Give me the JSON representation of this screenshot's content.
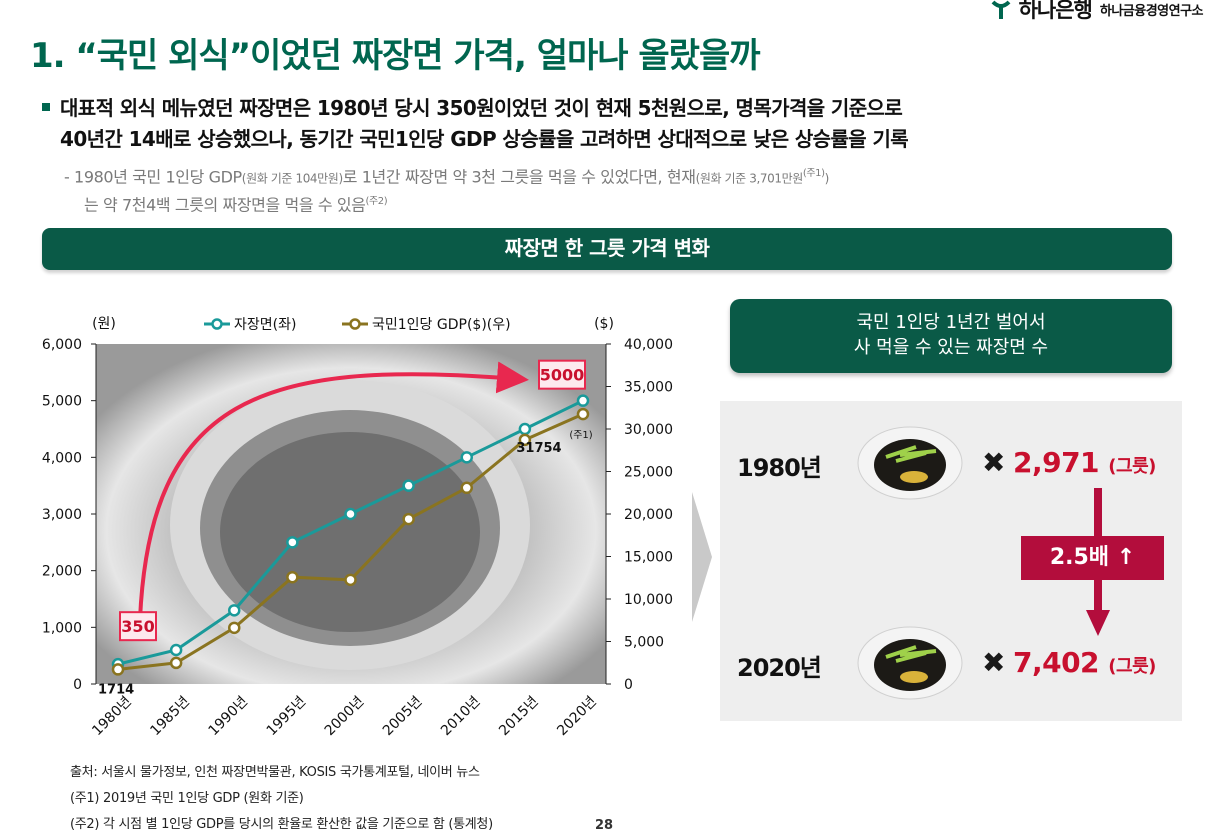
{
  "header": {
    "bank_name": "하나은행",
    "institute": "하나금융경영연구소",
    "title": "1. “국민 외식”이었던 짜장면 가격, 얼마나 올랐을까"
  },
  "bullet": {
    "line1": "대표적 외식 메뉴였던 짜장면은 1980년 당시 350원이었던 것이 현재 5천원으로, 명목가격을 기준으로",
    "line2": "40년간 14배로 상승했으나, 동기간 국민1인당 GDP 상승률을 고려하면 상대적으로 낮은 상승률을 기록"
  },
  "sub": {
    "a1": "- 1980년 국민 1인당 GDP",
    "a2": "(원화 기준 104만원)",
    "a3": "로 1년간 짜장면 약 3천 그릇을 먹을 수 있었다면, 현재",
    "a4": "(원화 기준 3,701만원",
    "a5": "(주1)",
    "a6": ")",
    "b1": "는 약 7천4백 그릇의 짜장면을 먹을 수 있음",
    "b2": "(주2)"
  },
  "banner": "짜장면 한 그릇 가격 변화",
  "chart_data": {
    "type": "line",
    "categories": [
      "1980년",
      "1985년",
      "1990년",
      "1995년",
      "2000년",
      "2005년",
      "2010년",
      "2015년",
      "2020년"
    ],
    "series": [
      {
        "name": "자장면(좌)",
        "axis": "left",
        "color": "#1a9a9a",
        "values": [
          350,
          600,
          1300,
          2500,
          3000,
          3500,
          4000,
          4500,
          5000
        ]
      },
      {
        "name": "국민1인당 GDP($)(우)",
        "axis": "right",
        "color": "#8a7420",
        "values": [
          1714,
          2483,
          6610,
          12565,
          12257,
          19403,
          23083,
          28724,
          31754
        ]
      }
    ],
    "left_unit": "(원)",
    "right_unit": "($)",
    "left_ylim": [
      0,
      6000
    ],
    "right_ylim": [
      0,
      40000
    ],
    "left_ticks": [
      "0",
      "1,000",
      "2,000",
      "3,000",
      "4,000",
      "5,000",
      "6,000"
    ],
    "right_ticks": [
      "0",
      "5,000",
      "10,000",
      "15,000",
      "20,000",
      "25,000",
      "30,000",
      "35,000",
      "40,000"
    ],
    "annotations": {
      "start_box": "350",
      "end_box": "5000",
      "gdp_start": "1714",
      "gdp_end": "31754",
      "gdp_end_note": "(주1)"
    },
    "legend_position": "top",
    "grid": false,
    "arrow_color": "#e8284f"
  },
  "notes": {
    "source": "출처: 서울시 물가정보, 인천 짜장면박물관, KOSIS 국가통계포털, 네이버 뉴스",
    "note1": "(주1) 2019년 국민 1인당 GDP (원화 기준)",
    "note2": "(주2) 각 시점 별 1인당 GDP를 당시의 환율로 환산한 값을 기준으로 함 (통계청)"
  },
  "page_number": "28",
  "right_panel": {
    "title_line1": "국민 1인당 1년간 벌어서",
    "title_line2": "사 먹을 수 있는 짜장면 수",
    "rows": [
      {
        "year": "1980년",
        "count": "2,971",
        "unit": "(그릇)"
      },
      {
        "year": "2020년",
        "count": "7,402",
        "unit": "(그릇)"
      }
    ],
    "multiplier": "2.5배",
    "multiplier_arrow": "↑",
    "times_symbol": "✖"
  }
}
